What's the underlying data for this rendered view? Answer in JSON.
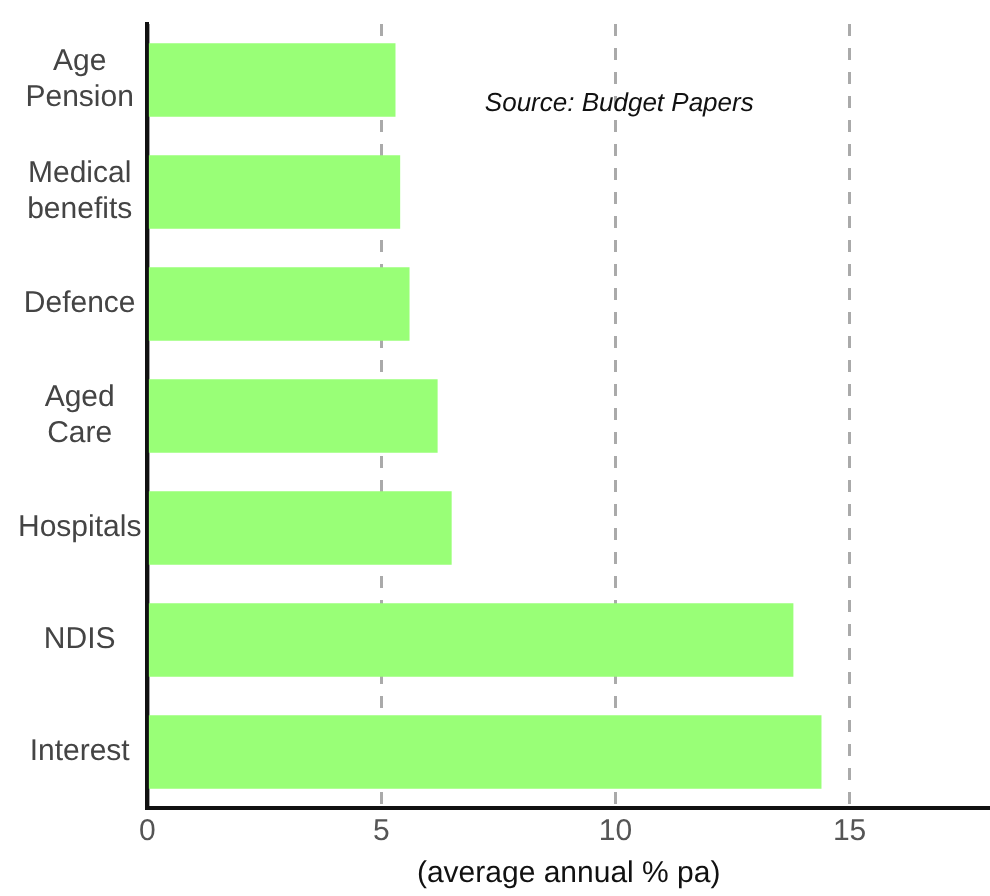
{
  "chart_data": {
    "type": "bar",
    "orientation": "horizontal",
    "xlabel": "(average annual % pa)",
    "categories": [
      "Age Pension",
      "Medical benefits",
      "Defence",
      "Aged Care",
      "Hospitals",
      "NDIS",
      "Interest"
    ],
    "values": [
      5.3,
      5.4,
      5.6,
      6.2,
      6.5,
      13.8,
      14.4
    ],
    "color": "#99ff77",
    "xlim": [
      0,
      18
    ],
    "xticks": [
      0,
      5,
      10,
      15
    ],
    "grid": "x",
    "annotations": [
      "Source: Budget Papers"
    ]
  }
}
